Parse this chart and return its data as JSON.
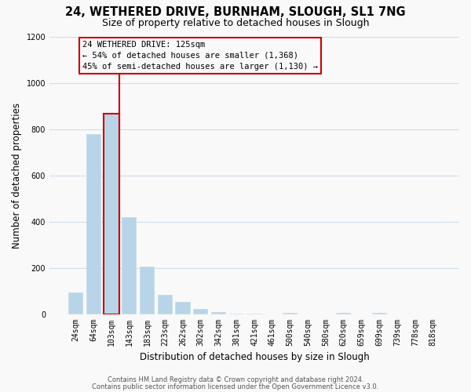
{
  "title": "24, WETHERED DRIVE, BURNHAM, SLOUGH, SL1 7NG",
  "subtitle": "Size of property relative to detached houses in Slough",
  "xlabel": "Distribution of detached houses by size in Slough",
  "ylabel": "Number of detached properties",
  "bar_labels": [
    "24sqm",
    "64sqm",
    "103sqm",
    "143sqm",
    "183sqm",
    "223sqm",
    "262sqm",
    "302sqm",
    "342sqm",
    "381sqm",
    "421sqm",
    "461sqm",
    "500sqm",
    "540sqm",
    "580sqm",
    "620sqm",
    "659sqm",
    "699sqm",
    "739sqm",
    "778sqm",
    "818sqm"
  ],
  "bar_values": [
    95,
    780,
    865,
    420,
    205,
    85,
    55,
    25,
    10,
    5,
    2,
    0,
    8,
    0,
    0,
    8,
    0,
    8,
    0,
    0,
    0
  ],
  "bar_color": "#b8d4e8",
  "highlight_bar_index": 2,
  "highlight_color": "#cc0000",
  "ylim": [
    0,
    1200
  ],
  "yticks": [
    0,
    200,
    400,
    600,
    800,
    1000,
    1200
  ],
  "annotation_title": "24 WETHERED DRIVE: 125sqm",
  "annotation_line1": "← 54% of detached houses are smaller (1,368)",
  "annotation_line2": "45% of semi-detached houses are larger (1,130) →",
  "footnote1": "Contains HM Land Registry data © Crown copyright and database right 2024.",
  "footnote2": "Contains public sector information licensed under the Open Government Licence v3.0.",
  "background_color": "#f9f9f9",
  "grid_color": "#d0dce8",
  "title_fontsize": 10.5,
  "subtitle_fontsize": 9,
  "axis_label_fontsize": 8.5,
  "tick_fontsize": 7,
  "annotation_fontsize": 7.5,
  "footnote_fontsize": 6
}
